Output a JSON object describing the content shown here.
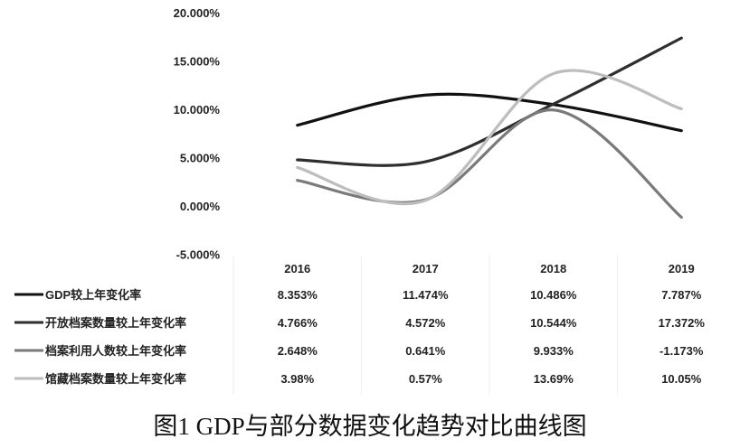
{
  "chart_data": {
    "type": "line",
    "title": "",
    "caption": "图1 GDP与部分数据变化趋势对比曲线图",
    "categories": [
      "2016",
      "2017",
      "2018",
      "2019"
    ],
    "ylim": [
      -5,
      20
    ],
    "yticks": [
      -5,
      0,
      5,
      10,
      15,
      20
    ],
    "ytick_labels": [
      "-5.000%",
      "0.000%",
      "5.000%",
      "10.000%",
      "15.000%",
      "20.000%"
    ],
    "grid": false,
    "legend": "data-table-bottom",
    "series": [
      {
        "name": "GDP较上年变化率",
        "values": [
          8.353,
          11.474,
          10.486,
          7.787
        ],
        "labels": [
          "8.353%",
          "11.474%",
          "10.486%",
          "7.787%"
        ],
        "color": "#111111"
      },
      {
        "name": "开放档案数量较上年变化率",
        "values": [
          4.766,
          4.572,
          10.544,
          17.372
        ],
        "labels": [
          "4.766%",
          "4.572%",
          "10.544%",
          "17.372%"
        ],
        "color": "#2e2e2e"
      },
      {
        "name": "档案利用人数较上年变化率",
        "values": [
          2.648,
          0.641,
          9.933,
          -1.173
        ],
        "labels": [
          "2.648%",
          "0.641%",
          "9.933%",
          "-1.173%"
        ],
        "color": "#7a7a7a"
      },
      {
        "name": "馆藏档案数量较上年变化率",
        "values": [
          3.98,
          0.57,
          13.69,
          10.05
        ],
        "labels": [
          "3.98%",
          "0.57%",
          "13.69%",
          "10.05%"
        ],
        "color": "#bdbdbd"
      }
    ]
  }
}
